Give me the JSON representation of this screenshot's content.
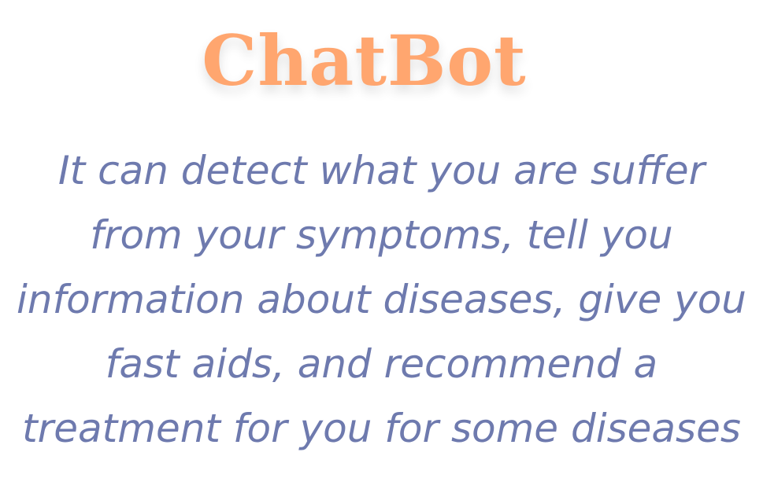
{
  "title": "ChatBot",
  "description_lines": [
    "It can detect what you are suffer",
    "from your symptoms, tell you",
    "information about diseases, give you",
    "fast aids, and recommend a",
    "treatment for you for some diseases"
  ],
  "colors": {
    "title": "#FFA66F",
    "description": "#6E7AAE",
    "background": "#FFFFFF"
  }
}
